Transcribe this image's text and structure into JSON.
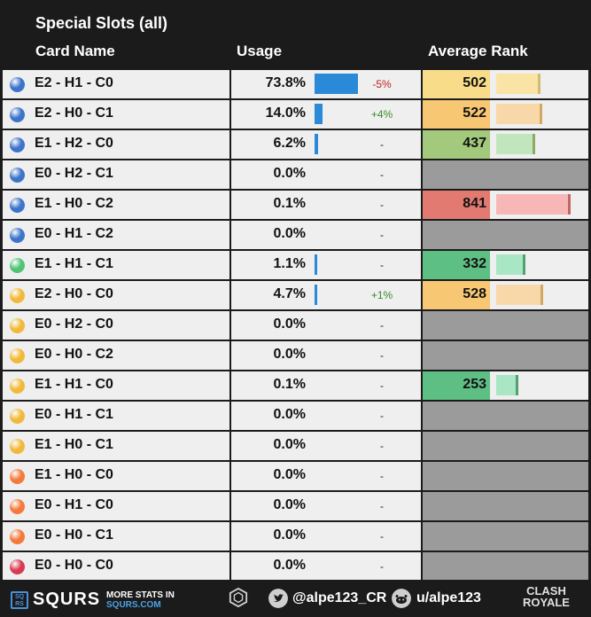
{
  "header": {
    "title": "Special Slots (all)",
    "col_name": "Card Name",
    "col_usage": "Usage",
    "col_rank": "Average Rank"
  },
  "chart_data": {
    "type": "table",
    "title": "Special Slots (all)",
    "columns": [
      "Card Name",
      "Usage",
      "Average Rank"
    ],
    "usage_scale_max": 100,
    "rank_scale_max": 1000,
    "rows": [
      {
        "name": "E2 - H1 - C0",
        "usage": "73.8%",
        "usage_value": 73.8,
        "change": "-5%",
        "change_dir": "down",
        "rank": "502",
        "rank_value": 502,
        "rank_color": "#f8dc8a",
        "rank_bar_color": "#f9e3a5",
        "ball_color": "#3c74c9"
      },
      {
        "name": "E2 - H0 - C1",
        "usage": "14.0%",
        "usage_value": 14.0,
        "change": "+4%",
        "change_dir": "up",
        "rank": "522",
        "rank_value": 522,
        "rank_color": "#f7c774",
        "rank_bar_color": "#f8d8a8",
        "ball_color": "#3c74c9"
      },
      {
        "name": "E1 - H2 - C0",
        "usage": "6.2%",
        "usage_value": 6.2,
        "change": "-",
        "change_dir": "none",
        "rank": "437",
        "rank_value": 437,
        "rank_color": "#a3c97c",
        "rank_bar_color": "#c1e6bd",
        "ball_color": "#3c74c9"
      },
      {
        "name": "E0 - H2 - C1",
        "usage": "0.0%",
        "usage_value": 0.0,
        "change": "-",
        "change_dir": "none",
        "rank": "",
        "rank_value": null,
        "rank_color": "#9b9b9b",
        "rank_bar_color": "",
        "ball_color": "#3c74c9"
      },
      {
        "name": "E1 - H0 - C2",
        "usage": "0.1%",
        "usage_value": 0.1,
        "change": "-",
        "change_dir": "none",
        "rank": "841",
        "rank_value": 841,
        "rank_color": "#e37a72",
        "rank_bar_color": "#f7b7b7",
        "ball_color": "#3c74c9"
      },
      {
        "name": "E0 - H1 - C2",
        "usage": "0.0%",
        "usage_value": 0.0,
        "change": "-",
        "change_dir": "none",
        "rank": "",
        "rank_value": null,
        "rank_color": "#9b9b9b",
        "rank_bar_color": "",
        "ball_color": "#3c74c9"
      },
      {
        "name": "E1 - H1 - C1",
        "usage": "1.1%",
        "usage_value": 1.1,
        "change": "-",
        "change_dir": "none",
        "rank": "332",
        "rank_value": 332,
        "rank_color": "#5ebf84",
        "rank_bar_color": "#a8e6c4",
        "ball_color": "#4fc474"
      },
      {
        "name": "E2 - H0 - C0",
        "usage": "4.7%",
        "usage_value": 4.7,
        "change": "+1%",
        "change_dir": "up",
        "rank": "528",
        "rank_value": 528,
        "rank_color": "#f7c774",
        "rank_bar_color": "#f8d8a8",
        "ball_color": "#f0b93a"
      },
      {
        "name": "E0 - H2 - C0",
        "usage": "0.0%",
        "usage_value": 0.0,
        "change": "-",
        "change_dir": "none",
        "rank": "",
        "rank_value": null,
        "rank_color": "#9b9b9b",
        "rank_bar_color": "",
        "ball_color": "#f0b93a"
      },
      {
        "name": "E0 - H0 - C2",
        "usage": "0.0%",
        "usage_value": 0.0,
        "change": "-",
        "change_dir": "none",
        "rank": "",
        "rank_value": null,
        "rank_color": "#9b9b9b",
        "rank_bar_color": "",
        "ball_color": "#f0b93a"
      },
      {
        "name": "E1 - H1 - C0",
        "usage": "0.1%",
        "usage_value": 0.1,
        "change": "-",
        "change_dir": "none",
        "rank": "253",
        "rank_value": 253,
        "rank_color": "#5ebf84",
        "rank_bar_color": "#a8e6c4",
        "ball_color": "#f0b93a"
      },
      {
        "name": "E0 - H1 - C1",
        "usage": "0.0%",
        "usage_value": 0.0,
        "change": "-",
        "change_dir": "none",
        "rank": "",
        "rank_value": null,
        "rank_color": "#9b9b9b",
        "rank_bar_color": "",
        "ball_color": "#f0b93a"
      },
      {
        "name": "E1 - H0 - C1",
        "usage": "0.0%",
        "usage_value": 0.0,
        "change": "-",
        "change_dir": "none",
        "rank": "",
        "rank_value": null,
        "rank_color": "#9b9b9b",
        "rank_bar_color": "",
        "ball_color": "#f0b93a"
      },
      {
        "name": "E1 - H0 - C0",
        "usage": "0.0%",
        "usage_value": 0.0,
        "change": "-",
        "change_dir": "none",
        "rank": "",
        "rank_value": null,
        "rank_color": "#9b9b9b",
        "rank_bar_color": "",
        "ball_color": "#f47a3c"
      },
      {
        "name": "E0 - H1 - C0",
        "usage": "0.0%",
        "usage_value": 0.0,
        "change": "-",
        "change_dir": "none",
        "rank": "",
        "rank_value": null,
        "rank_color": "#9b9b9b",
        "rank_bar_color": "",
        "ball_color": "#f47a3c"
      },
      {
        "name": "E0 - H0 - C1",
        "usage": "0.0%",
        "usage_value": 0.0,
        "change": "-",
        "change_dir": "none",
        "rank": "",
        "rank_value": null,
        "rank_color": "#9b9b9b",
        "rank_bar_color": "",
        "ball_color": "#f47a3c"
      },
      {
        "name": "E0 - H0 - C0",
        "usage": "0.0%",
        "usage_value": 0.0,
        "change": "-",
        "change_dir": "none",
        "rank": "",
        "rank_value": null,
        "rank_color": "#9b9b9b",
        "rank_bar_color": "",
        "ball_color": "#d93a52"
      }
    ]
  },
  "colors": {
    "usage_bar": "#2b8ad8",
    "change_up": "#3a8a2a",
    "change_down": "#c02020",
    "change_none": "#222222"
  },
  "footer": {
    "brand": "SQURS",
    "logo_letters": "SQ RS",
    "more_line1": "MORE STATS IN",
    "more_line2": "SQURS.COM",
    "twitter_handle": "@alpe123_CR",
    "reddit_handle": "u/alpe123",
    "game_logo_line1": "CLASH",
    "game_logo_line2": "ROYALE",
    "icons": [
      "squrs-logo-icon",
      "author-logo-icon",
      "twitter-icon",
      "reddit-icon",
      "clash-royale-logo-icon"
    ]
  }
}
